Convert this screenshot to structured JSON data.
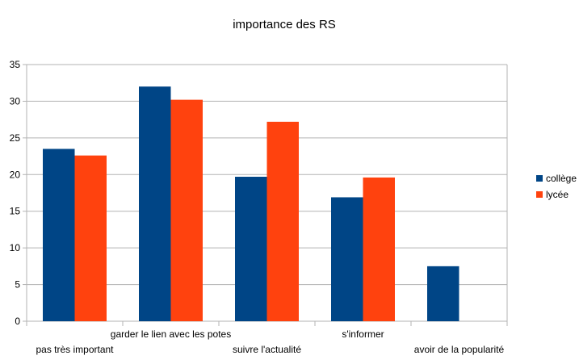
{
  "chart_data": {
    "type": "bar",
    "title": "importance des RS",
    "xlabel": "",
    "ylabel": "",
    "ylim": [
      0,
      35
    ],
    "yticks": [
      "0",
      "5",
      "10",
      "15",
      "20",
      "25",
      "30",
      "35"
    ],
    "grid": true,
    "legend_position": "right",
    "categories": [
      "pas très important",
      "garder le lien avec les potes",
      "suivre l'actualité",
      "s'informer",
      "avoir de la popularité"
    ],
    "series": [
      {
        "name": "collège",
        "color": "#004586",
        "values": [
          23.5,
          32,
          19.7,
          16.9,
          7.5
        ]
      },
      {
        "name": "lycée",
        "color": "#ff420e",
        "values": [
          22.6,
          30.2,
          27.2,
          19.6,
          0
        ]
      }
    ]
  }
}
